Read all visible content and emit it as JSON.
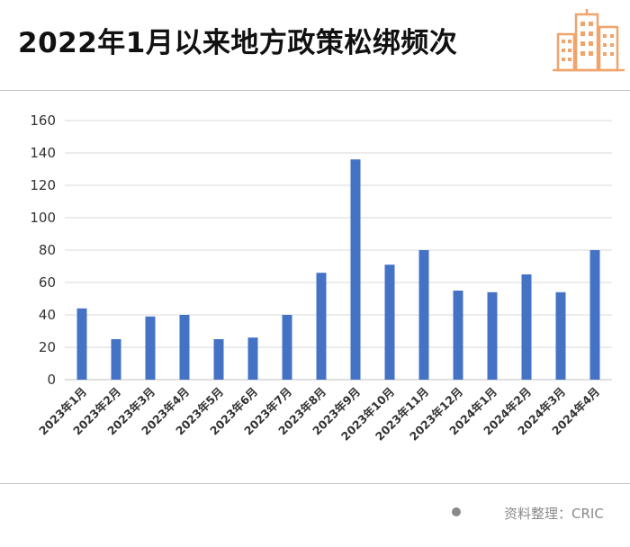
{
  "title": "2022年1月以来地方政策松绑频次",
  "logo_icon": "city-buildings-icon",
  "source_text": "资料整理：CRIC",
  "colors": {
    "bar": "#4472C4",
    "grid": "#d9d9d9",
    "logo": "#F0A36A"
  },
  "chart_data": {
    "type": "bar",
    "title": "",
    "xlabel": "",
    "ylabel": "",
    "categories": [
      "2023年1月",
      "2023年2月",
      "2023年3月",
      "2023年4月",
      "2023年5月",
      "2023年6月",
      "2023年7月",
      "2023年8月",
      "2023年9月",
      "2023年10月",
      "2023年11月",
      "2023年12月",
      "2024年1月",
      "2024年2月",
      "2024年3月",
      "2024年4月"
    ],
    "values": [
      44,
      25,
      39,
      40,
      25,
      26,
      40,
      66,
      136,
      71,
      80,
      55,
      54,
      65,
      54,
      80
    ],
    "ylim": [
      0,
      160
    ],
    "yticks": [
      0,
      20,
      40,
      60,
      80,
      100,
      120,
      140,
      160
    ],
    "grid": true,
    "legend": "none"
  }
}
